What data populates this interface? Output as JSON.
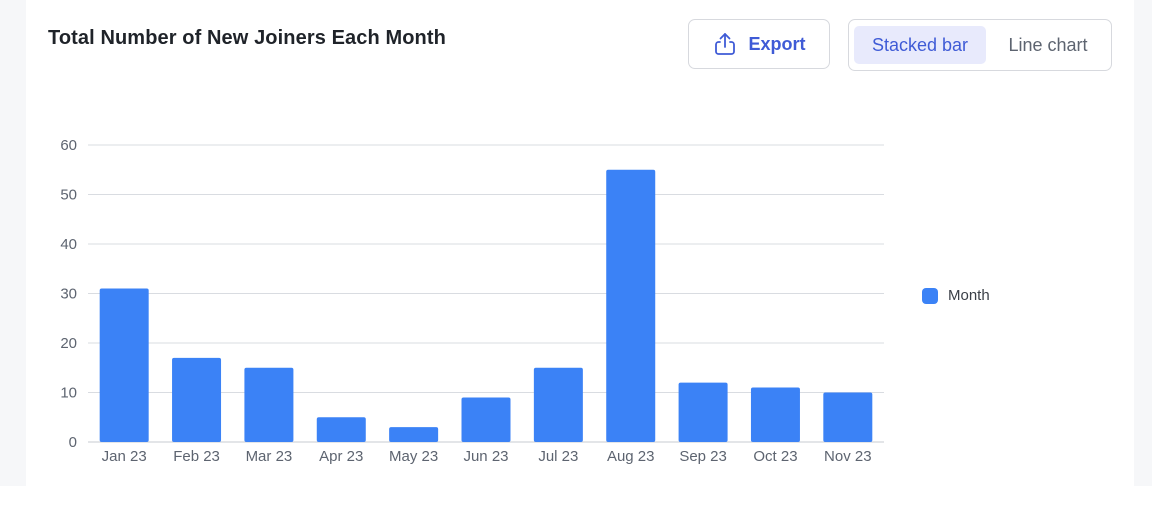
{
  "header": {
    "title": "Total Number of New Joiners Each Month",
    "export_label": "Export",
    "export_icon": "share-upload-icon",
    "view_options": [
      "Stacked bar",
      "Line chart"
    ],
    "active_view": "Stacked bar"
  },
  "colors": {
    "bar": "#3b82f6",
    "accent": "#3f5bd6",
    "active_toggle_bg": "#e8eafc",
    "grid": "#d9dce1"
  },
  "chart_data": {
    "type": "bar",
    "title": "Total Number of New Joiners Each Month",
    "xlabel": "",
    "ylabel": "",
    "categories": [
      "Jan 23",
      "Feb 23",
      "Mar 23",
      "Apr 23",
      "May 23",
      "Jun 23",
      "Jul 23",
      "Aug 23",
      "Sep 23",
      "Oct 23",
      "Nov 23"
    ],
    "series": [
      {
        "name": "Month",
        "values": [
          31,
          17,
          15,
          5,
          3,
          9,
          15,
          55,
          12,
          11,
          10
        ]
      }
    ],
    "yticks": [
      0,
      10,
      20,
      30,
      40,
      50,
      60
    ],
    "ylim": [
      0,
      60
    ],
    "grid": true,
    "legend": "right"
  }
}
